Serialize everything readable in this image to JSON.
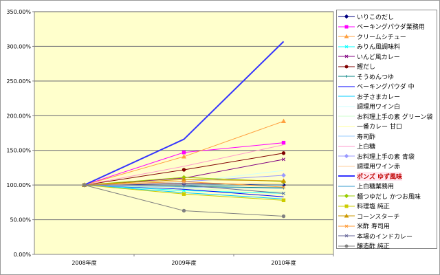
{
  "chart_data": {
    "type": "line",
    "categories": [
      "2008年度",
      "2009年度",
      "2010年度"
    ],
    "ylim": [
      0,
      350
    ],
    "yticks": [
      "0.00%",
      "50.00%",
      "100.00%",
      "150.00%",
      "200.00%",
      "250.00%",
      "300.00%",
      "350.00%"
    ],
    "ytick_values": [
      0,
      50,
      100,
      150,
      200,
      250,
      300,
      350
    ],
    "yunit": "%",
    "grid": true,
    "legend_position": "right",
    "plot_background": "#FFFFCC",
    "series": [
      {
        "name": "いりこのだし",
        "values": [
          100,
          102,
          100
        ],
        "color": "#000080",
        "marker": "diamond"
      },
      {
        "name": "ベーキングパウダ業務用",
        "values": [
          100,
          147,
          161
        ],
        "color": "#FF00FF",
        "marker": "square"
      },
      {
        "name": "クリームシチュー",
        "values": [
          100,
          141,
          192
        ],
        "color": "#FFA040",
        "marker": "triangle"
      },
      {
        "name": "みりん風調味料",
        "values": [
          100,
          92,
          88
        ],
        "color": "#00FFFF",
        "marker": "x"
      },
      {
        "name": "いんど風カレー",
        "values": [
          100,
          110,
          137
        ],
        "color": "#800080",
        "marker": "star"
      },
      {
        "name": "鰹だし",
        "values": [
          100,
          122,
          146
        ],
        "color": "#800000",
        "marker": "circle"
      },
      {
        "name": "そうめんつゆ",
        "values": [
          100,
          98,
          96
        ],
        "color": "#008080",
        "marker": "plus"
      },
      {
        "name": "ベーキングパウダ 中",
        "values": [
          100,
          94,
          83
        ],
        "color": "#0000FF",
        "marker": "none"
      },
      {
        "name": "お子さまカレー",
        "values": [
          100,
          89,
          80
        ],
        "color": "#00CCFF",
        "marker": "none"
      },
      {
        "name": "調理用ワイン白",
        "values": [
          100,
          104,
          121
        ],
        "color": "#CCFFFF",
        "marker": "none"
      },
      {
        "name": "お料理上手の素 グリーン袋",
        "values": [
          100,
          95,
          90
        ],
        "color": "#CCFFCC",
        "marker": "none"
      },
      {
        "name": "一番カレー 甘口",
        "values": [
          100,
          99,
          103
        ],
        "color": "#FFFF99",
        "marker": "none"
      },
      {
        "name": "寿司酢",
        "values": [
          100,
          97,
          95
        ],
        "color": "#99CCFF",
        "marker": "none"
      },
      {
        "name": "上白糖",
        "values": [
          100,
          127,
          158
        ],
        "color": "#FF99CC",
        "marker": "none"
      },
      {
        "name": "お料理上手の素 青袋",
        "values": [
          100,
          105,
          114
        ],
        "color": "#9999FF",
        "marker": "diamond"
      },
      {
        "name": "調理用ワイン赤",
        "values": [
          100,
          103,
          101
        ],
        "color": "#FFCC99",
        "marker": "none"
      },
      {
        "name": "ポンズ ゆず風味",
        "values": [
          100,
          166,
          307
        ],
        "color": "#3333FF",
        "marker": "none",
        "highlight": true
      },
      {
        "name": "上白糖業務用",
        "values": [
          100,
          100,
          100
        ],
        "color": "#3399CC",
        "marker": "none"
      },
      {
        "name": "麺つゆだし かつお風味",
        "values": [
          100,
          111,
          105
        ],
        "color": "#99CC00",
        "marker": "diamond"
      },
      {
        "name": "料理塩 純正",
        "values": [
          100,
          87,
          78
        ],
        "color": "#CCCC00",
        "marker": "square"
      },
      {
        "name": "コーンスターチ",
        "values": [
          100,
          108,
          106
        ],
        "color": "#CC9900",
        "marker": "triangle"
      },
      {
        "name": "米酢 寿司用",
        "values": [
          100,
          105,
          97
        ],
        "color": "#FF9933",
        "marker": "x"
      },
      {
        "name": "本場のインドカレー",
        "values": [
          100,
          100,
          88
        ],
        "color": "#666699",
        "marker": "star"
      },
      {
        "name": "醸造酢 純正",
        "values": [
          100,
          63,
          55
        ],
        "color": "#808080",
        "marker": "circle"
      }
    ]
  }
}
